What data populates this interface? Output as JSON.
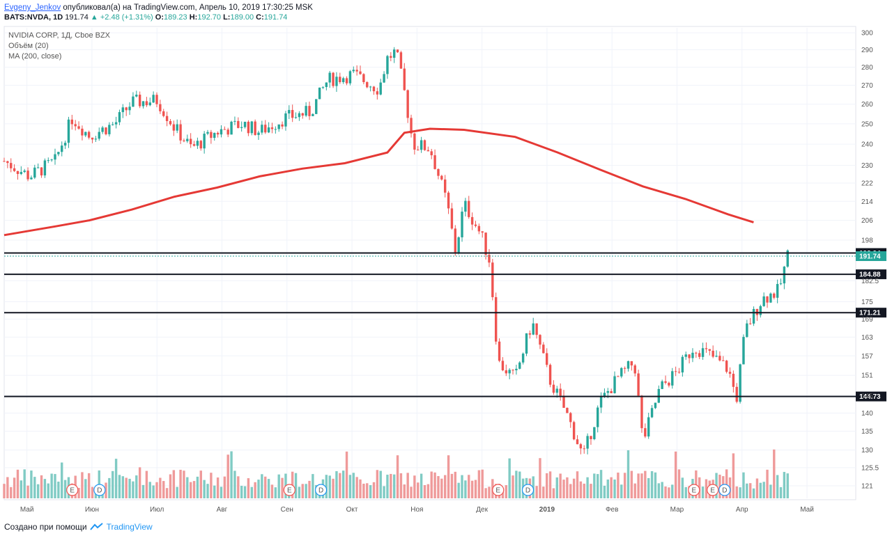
{
  "header": {
    "user": "Evgeny_Jenkov",
    "published": "опубликовал(а) на TradingView.com, Апрель 10, 2019 17:30:25 MSK",
    "symbol": "BATS:NVDA, 1D",
    "last": "191.74",
    "change": "+2.48 (+1.31%)",
    "o_label": "O:",
    "o": "189.23",
    "h_label": "H:",
    "h": "192.70",
    "l_label": "L:",
    "l": "189.00",
    "c_label": "C:",
    "c": "191.74",
    "up_arrow": "▲"
  },
  "legend": {
    "title": "NVIDIA CORP, 1Д, Cboe BZX",
    "volume": "Объём (20)",
    "ma": "MA (200, close)"
  },
  "footer": {
    "text": "Создано при помощи",
    "brand": "TradingView",
    "logo_icon": "tradingview-logo-icon"
  },
  "colors": {
    "up": "#26a69a",
    "down": "#ef5350",
    "ma": "#e53935",
    "vol_up": "#80cbc4",
    "vol_down": "#ef9a9a",
    "line": "#131722"
  },
  "chart_data": {
    "type": "candlestick",
    "title": "NVIDIA CORP, 1Д, Cboe BZX",
    "x_labels": [
      "Май",
      "Июн",
      "Июл",
      "Авг",
      "Сен",
      "Окт",
      "Ноя",
      "Дек",
      "2019",
      "Фев",
      "Мар",
      "Апр",
      "Май"
    ],
    "y_ticks": [
      300,
      290,
      280,
      270,
      260,
      250,
      240,
      230,
      222,
      214,
      206,
      198,
      182.5,
      175,
      169,
      163,
      157,
      151,
      145,
      140,
      135,
      130,
      125.5,
      121
    ],
    "ylim": [
      118,
      303
    ],
    "y_scale": "log",
    "price_levels": [
      {
        "value": 192.94,
        "label": "192.94"
      },
      {
        "value": 184.88,
        "label": "184.88"
      },
      {
        "value": 171.21,
        "label": "171.21"
      },
      {
        "value": 144.73,
        "label": "144.73"
      }
    ],
    "last_price": {
      "value": 191.74,
      "label": "191.74"
    },
    "ma200_points": [
      [
        0,
        200
      ],
      [
        0.06,
        203.5
      ],
      [
        0.1,
        206
      ],
      [
        0.15,
        210.5
      ],
      [
        0.2,
        216
      ],
      [
        0.25,
        220
      ],
      [
        0.3,
        225
      ],
      [
        0.35,
        228.5
      ],
      [
        0.4,
        231
      ],
      [
        0.45,
        236
      ],
      [
        0.47,
        245.5
      ],
      [
        0.5,
        247.5
      ],
      [
        0.54,
        247
      ],
      [
        0.6,
        243.5
      ],
      [
        0.65,
        236
      ],
      [
        0.7,
        228
      ],
      [
        0.75,
        220.5
      ],
      [
        0.8,
        215
      ],
      [
        0.85,
        208.5
      ],
      [
        0.88,
        205.2
      ]
    ],
    "events": [
      {
        "label": "E",
        "x": 0.08
      },
      {
        "label": "D",
        "x": 0.112
      },
      {
        "label": "E",
        "x": 0.335
      },
      {
        "label": "D",
        "x": 0.372
      },
      {
        "label": "E",
        "x": 0.58
      },
      {
        "label": "D",
        "x": 0.615
      },
      {
        "label": "E",
        "x": 0.81
      },
      {
        "label": "E",
        "x": 0.832
      },
      {
        "label": "D",
        "x": 0.846
      }
    ]
  }
}
